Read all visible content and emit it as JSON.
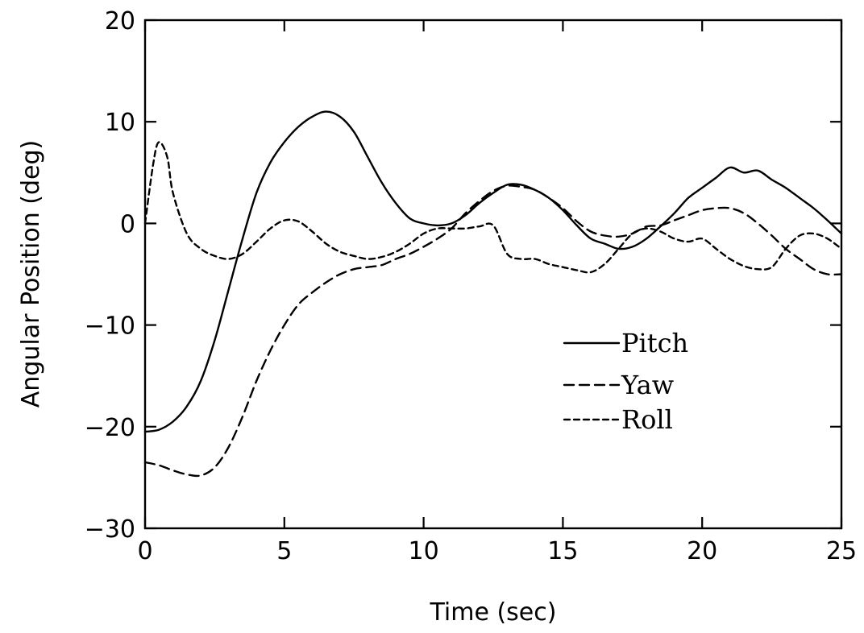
{
  "chart_data": {
    "type": "line",
    "xlabel": "Time (sec)",
    "ylabel": "Angular Position (deg)",
    "xlim": [
      0,
      25
    ],
    "ylim": [
      -30,
      20
    ],
    "xticks": [
      0,
      5,
      10,
      15,
      20,
      25
    ],
    "yticks": [
      -30,
      -20,
      -10,
      0,
      10,
      20
    ],
    "x_tick_labels": [
      "0",
      "5",
      "10",
      "15",
      "20",
      "25"
    ],
    "y_tick_labels": [
      "−30",
      "−20",
      "−10",
      "0",
      "10",
      "20"
    ],
    "grid": false,
    "legend_position": "center-right",
    "series": [
      {
        "name": "Pitch",
        "style": "solid",
        "x": [
          0,
          0.5,
          1,
          1.5,
          2,
          2.5,
          3,
          3.5,
          4,
          4.5,
          5,
          5.5,
          6,
          6.5,
          7,
          7.5,
          8,
          8.5,
          9,
          9.5,
          10,
          10.5,
          11,
          11.5,
          12,
          12.5,
          13,
          13.5,
          14,
          14.5,
          15,
          15.5,
          16,
          16.5,
          17,
          17.5,
          18,
          18.5,
          19,
          19.5,
          20,
          20.5,
          21,
          21.5,
          22,
          22.5,
          23,
          23.5,
          24,
          24.5,
          25
        ],
        "y": [
          -20.5,
          -20.3,
          -19.5,
          -18,
          -15.5,
          -11.5,
          -6.5,
          -1.5,
          3,
          6,
          8,
          9.5,
          10.5,
          11,
          10.5,
          9,
          6.5,
          4,
          2,
          0.5,
          0,
          -0.2,
          0,
          0.8,
          2,
          3,
          3.8,
          3.8,
          3.3,
          2.5,
          1.3,
          -0.2,
          -1.5,
          -2,
          -2.5,
          -2.3,
          -1.5,
          -0.3,
          1,
          2.5,
          3.5,
          4.5,
          5.5,
          5,
          5.2,
          4.3,
          3.5,
          2.5,
          1.5,
          0.3,
          -1
        ]
      },
      {
        "name": "Yaw",
        "style": "dashed",
        "x": [
          0,
          0.5,
          1,
          1.5,
          2,
          2.5,
          3,
          3.5,
          4,
          4.5,
          5,
          5.5,
          6,
          6.5,
          7,
          7.5,
          8,
          8.5,
          9,
          9.5,
          10,
          10.5,
          11,
          11.5,
          12,
          12.5,
          13,
          13.5,
          14,
          14.5,
          15,
          15.5,
          16,
          16.5,
          17,
          17.5,
          18,
          18.5,
          19,
          19.5,
          20,
          20.5,
          21,
          21.5,
          22,
          22.5,
          23,
          23.5,
          24,
          24.5,
          25
        ],
        "y": [
          -23.5,
          -23.8,
          -24.3,
          -24.7,
          -24.8,
          -24,
          -22,
          -19,
          -15.5,
          -12.5,
          -10,
          -8,
          -6.8,
          -5.8,
          -5,
          -4.5,
          -4.3,
          -4.1,
          -3.5,
          -3,
          -2.3,
          -1.5,
          -0.5,
          1,
          2.2,
          3.2,
          3.7,
          3.6,
          3.3,
          2.5,
          1.5,
          0.2,
          -0.8,
          -1.2,
          -1.3,
          -1,
          -0.3,
          -0.2,
          0.3,
          0.8,
          1.3,
          1.5,
          1.5,
          1,
          0,
          -1.2,
          -2.5,
          -3.5,
          -4.5,
          -5,
          -5
        ]
      },
      {
        "name": "Roll",
        "style": "short-dashed",
        "x": [
          0,
          0.3,
          0.5,
          0.8,
          1,
          1.5,
          2,
          2.5,
          3,
          3.5,
          4,
          4.5,
          5,
          5.5,
          6,
          6.5,
          7,
          7.5,
          8,
          8.5,
          9,
          9.5,
          10,
          10.5,
          11,
          11.5,
          12,
          12.5,
          13,
          13.5,
          14,
          14.5,
          15,
          15.5,
          16,
          16.5,
          17,
          17.5,
          18,
          18.5,
          19,
          19.5,
          20,
          20.5,
          21,
          21.5,
          22,
          22.5,
          23,
          23.5,
          24,
          24.5,
          25
        ],
        "y": [
          0,
          6,
          8,
          6.5,
          3,
          -1,
          -2.5,
          -3.2,
          -3.5,
          -3,
          -1.8,
          -0.5,
          0.3,
          0.2,
          -0.8,
          -2,
          -2.8,
          -3.2,
          -3.5,
          -3.3,
          -2.8,
          -2,
          -1,
          -0.5,
          -0.5,
          -0.5,
          -0.3,
          -0.2,
          -3,
          -3.5,
          -3.5,
          -4,
          -4.3,
          -4.6,
          -4.8,
          -4,
          -2.5,
          -1,
          -0.5,
          -0.8,
          -1.5,
          -1.8,
          -1.5,
          -2.5,
          -3.5,
          -4.2,
          -4.5,
          -4.3,
          -2.5,
          -1.2,
          -1,
          -1.5,
          -2.5
        ]
      }
    ]
  }
}
